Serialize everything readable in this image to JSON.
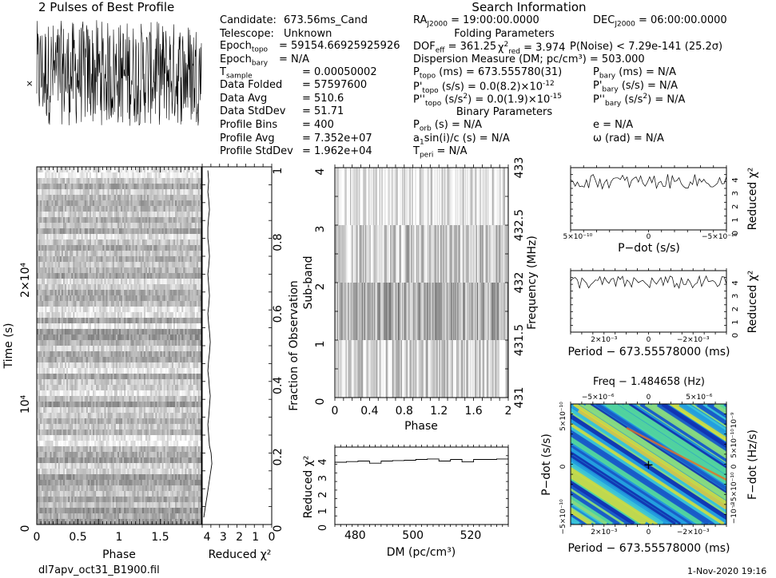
{
  "header": {
    "profile_title": "2 Pulses of Best Profile",
    "search_title": "Search Information",
    "folding_title": "Folding Parameters",
    "binary_title": "Binary Parameters"
  },
  "info_left": [
    {
      "label": "Candidate:",
      "value": "673.56ms_Cand"
    },
    {
      "label": "Telescope:",
      "value": "Unknown"
    },
    {
      "label": "Epoch",
      "sub": "topo",
      "value": "= 59154.66925925926"
    },
    {
      "label": "Epoch",
      "sub": "bary",
      "value": "= N/A"
    },
    {
      "label": "T",
      "sub": "sample",
      "value": "= 0.00050002"
    },
    {
      "label": "Data Folded",
      "value": "= 57597600"
    },
    {
      "label": "Data Avg",
      "value": "= 510.6"
    },
    {
      "label": "Data StdDev",
      "value": "= 51.71"
    },
    {
      "label": "Profile Bins",
      "value": "= 400"
    },
    {
      "label": "Profile Avg",
      "value": "= 7.352e+07"
    },
    {
      "label": "Profile StdDev",
      "value": "= 1.962e+04"
    }
  ],
  "search_info": {
    "ra": {
      "label": "RA",
      "sub": "J2000",
      "value": "= 19:00:00.0000"
    },
    "dec": {
      "label": "DEC",
      "sub": "J2000",
      "value": "= 06:00:00.0000"
    },
    "dof": {
      "label": "DOF",
      "sub": "eff",
      "value": "= 361.25"
    },
    "chi": {
      "label": "χ",
      "sup": "2",
      "sub": "red",
      "value": "= 3.974"
    },
    "pnoise": "P(Noise) < 7.29e-141   (25.2σ)",
    "dm": "Dispersion Measure (DM; pc/cm³) = 503.000",
    "ptopo": {
      "label": "P",
      "sub": "topo",
      "value": "(ms)  =  673.555780(31)"
    },
    "pbary": {
      "label": "P",
      "sub": "bary",
      "value": "(ms) = N/A"
    },
    "pdtopo": {
      "label": "P'",
      "sub": "topo",
      "value": "(s/s) = 0.0(8.2)×10",
      "exp": "-12"
    },
    "pdbary": {
      "label": "P'",
      "sub": "bary",
      "value": "(s/s) = N/A"
    },
    "pddtopo": {
      "label": "P''",
      "sub": "topo",
      "value": "(s/s",
      "unit_sup": "2",
      "value2": ") = 0.0(1.9)×10",
      "exp": "-15"
    },
    "pddbary": {
      "label": "P''",
      "sub": "bary",
      "value": "(s/s",
      "unit_sup": "2",
      "value2": ") = N/A"
    },
    "porb": {
      "label": "P",
      "sub": "orb",
      "value": "(s) = N/A"
    },
    "e": "e = N/A",
    "asini": {
      "label": "a",
      "sub": "1",
      "value": "sin(i)/c (s) = N/A"
    },
    "omega": "ω (rad) = N/A",
    "tperi": {
      "label": "T",
      "sub": "peri",
      "value": "= N/A"
    }
  },
  "footer": {
    "filename": "dl7apv_oct31_B1900.fil",
    "date": "1-Nov-2020 19:16"
  },
  "chart_data": [
    {
      "type": "line",
      "panel": "profile",
      "title": "2 Pulses of Best Profile",
      "xlabel": "",
      "ylabel": "",
      "note": "noisy pulse profile, two pulses over two periods",
      "n_points": 400,
      "marker": "×"
    },
    {
      "type": "heatmap",
      "panel": "time-phase",
      "xlabel": "Phase",
      "ylabel": "Time (s)",
      "xlim": [
        0,
        2
      ],
      "xticks": [
        "0",
        "0.5",
        "1",
        "1.5"
      ],
      "yticks": [
        "0",
        "10⁴",
        "2×10⁴"
      ],
      "ytick_values": [
        0,
        10000,
        20000
      ],
      "ylim": [
        0,
        28800
      ],
      "colormap": "grayscale"
    },
    {
      "type": "line",
      "panel": "time-chi2",
      "xlabel": "Reduced χ²",
      "ylabel": "Fraction of Observation",
      "xticks": [
        "4",
        "3",
        "2",
        "1",
        "0"
      ],
      "xlim": [
        4.3,
        0
      ],
      "ylim": [
        0,
        1
      ],
      "yticks": [
        "0",
        "0.2",
        "0.4",
        "0.6",
        "0.8",
        "1"
      ],
      "x": [
        4.2,
        4.1,
        4.0,
        3.9,
        3.8,
        3.7,
        3.75,
        3.85,
        3.9,
        3.95,
        3.9,
        3.85,
        3.8,
        3.85,
        3.9,
        3.95,
        3.9,
        3.85,
        3.8,
        3.85,
        3.9,
        3.95,
        3.9,
        3.85,
        3.9,
        3.95,
        3.9,
        3.85,
        3.9,
        3.95,
        3.95,
        3.9,
        3.85,
        3.9,
        3.95,
        3.9,
        3.95
      ],
      "y": [
        0.02,
        0.05,
        0.08,
        0.11,
        0.14,
        0.17,
        0.2,
        0.22,
        0.25,
        0.28,
        0.3,
        0.33,
        0.36,
        0.38,
        0.41,
        0.43,
        0.46,
        0.48,
        0.51,
        0.54,
        0.56,
        0.59,
        0.61,
        0.64,
        0.67,
        0.7,
        0.72,
        0.75,
        0.78,
        0.8,
        0.83,
        0.86,
        0.88,
        0.91,
        0.93,
        0.96,
        0.99
      ]
    },
    {
      "type": "heatmap",
      "panel": "subband-phase",
      "xlabel": "Phase",
      "ylabel": "Sub-band",
      "ylabel_right": "Frequency (MHz)",
      "xlim": [
        0,
        2
      ],
      "ylim": [
        0,
        4
      ],
      "xticks": [
        "0",
        "0.4",
        "0.8",
        "1.2",
        "1.6",
        "2"
      ],
      "yticks": [
        "0",
        "1",
        "2",
        "3",
        "4"
      ],
      "yticks_right": [
        "431",
        "431.5",
        "432",
        "432.5",
        "433"
      ],
      "colormap": "grayscale"
    },
    {
      "type": "line",
      "panel": "dm-chi2",
      "xlabel": "DM (pc/cm³)",
      "ylabel": "Reduced χ²",
      "xlim": [
        473,
        533
      ],
      "ylim": [
        0,
        4.7
      ],
      "xticks": [
        "480",
        "500",
        "520"
      ],
      "xtick_values": [
        480,
        500,
        520
      ],
      "yticks": [
        "0",
        "1",
        "2",
        "3",
        "4"
      ],
      "x": [
        473,
        477,
        481,
        485,
        489,
        493,
        497,
        501,
        505,
        509,
        513,
        517,
        521,
        525,
        529,
        533
      ],
      "y": [
        3.78,
        3.82,
        3.85,
        3.72,
        3.85,
        3.88,
        3.9,
        3.95,
        3.98,
        3.85,
        3.95,
        3.8,
        3.95,
        3.95,
        3.98,
        4.0
      ]
    },
    {
      "type": "line",
      "panel": "pdot-chi2",
      "xlabel": "P−dot (s/s)",
      "ylabel": "Reduced χ²",
      "xticks": [
        "5×10⁻¹⁰",
        "0",
        "−5×10⁻¹⁰"
      ],
      "xtick_values": [
        5e-10,
        0,
        -5e-10
      ],
      "xlim": [
        5.5e-10,
        -5.5e-10
      ],
      "ylim": [
        0,
        4.7
      ],
      "yticks": [
        "0",
        "1",
        "2",
        "3",
        "4"
      ],
      "note": "noisy curve around χ² ≈ 3.2–4.2"
    },
    {
      "type": "line",
      "panel": "period-chi2",
      "xlabel": "Period − 673.55578000 (ms)",
      "ylabel": "Reduced χ²",
      "xticks": [
        "2×10⁻³",
        "0",
        "−2×10⁻³"
      ],
      "xtick_values": [
        0.002,
        0,
        -0.002
      ],
      "xlim": [
        0.0035,
        -0.0035
      ],
      "ylim": [
        0,
        4.7
      ],
      "yticks": [
        "0",
        "1",
        "2",
        "3",
        "4"
      ],
      "note": "noisy curve around χ² ≈ 3.3–4.3"
    },
    {
      "type": "heatmap",
      "panel": "period-pdot",
      "title": "Freq − 1.484658 (Hz)",
      "xlabel": "Period − 673.55578000 (ms)",
      "ylabel": "P−dot (s/s)",
      "ylabel_right": "F−dot (Hz/s)",
      "xticks_bottom": [
        "2×10⁻³",
        "0",
        "−2×10⁻³"
      ],
      "xtick_values_bottom": [
        0.002,
        0,
        -0.002
      ],
      "xlim_bottom": [
        0.0035,
        -0.0035
      ],
      "xticks_top": [
        "−5×10⁻⁶",
        "0",
        "5×10⁻⁶"
      ],
      "xtick_values_top": [
        -5e-06,
        0,
        5e-06
      ],
      "xlim_top": [
        -7.7e-06,
        7.7e-06
      ],
      "yticks_left": [
        "−5×10⁻¹⁰",
        "0",
        "5×10⁻¹⁰"
      ],
      "ytick_values_left": [
        -5e-10,
        0,
        5e-10
      ],
      "ylim_left": [
        6e-10,
        -6e-10
      ],
      "yticks_right": [
        "10⁻⁹",
        "5×10⁻¹⁰",
        "0",
        "−5×10⁻¹⁰",
        "−10⁻⁹"
      ],
      "ytick_values_right": [
        1e-09,
        5e-10,
        0,
        -5e-10,
        -1e-09
      ],
      "ylim_right": [
        1.3e-09,
        -1.3e-09
      ],
      "colormap": "blue-green-yellow-red",
      "best_fit_marker": "+"
    }
  ]
}
